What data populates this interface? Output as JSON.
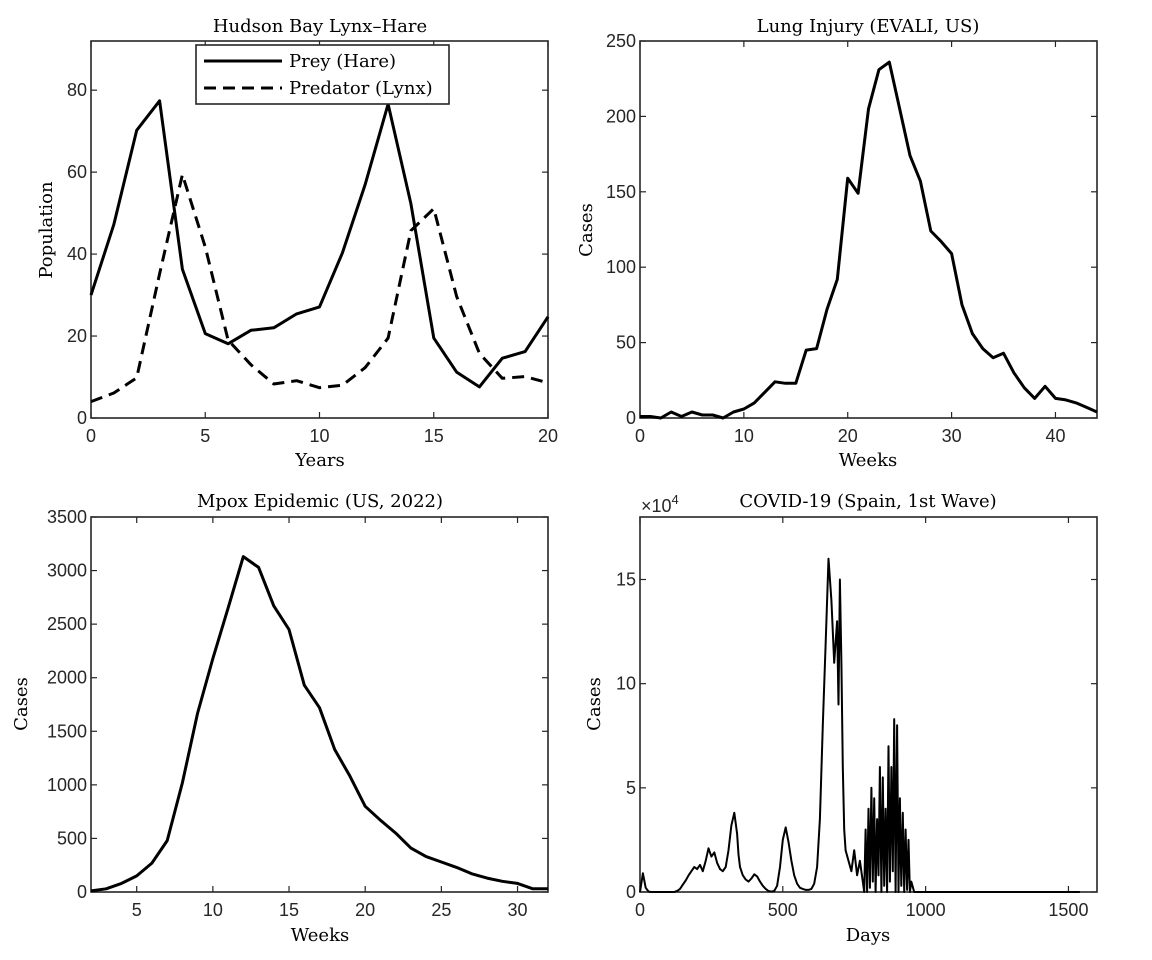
{
  "chart_data": [
    {
      "id": "lynx",
      "type": "line",
      "title": "Hudson Bay Lynx–Hare",
      "xlabel": "Years",
      "ylabel": "Population",
      "xlim": [
        0,
        20
      ],
      "ylim": [
        0,
        92
      ],
      "xticks": [
        0,
        5,
        10,
        15,
        20
      ],
      "yticks": [
        0,
        20,
        40,
        60,
        80
      ],
      "legend": "top-center",
      "x": [
        0,
        1,
        2,
        3,
        4,
        5,
        6,
        7,
        8,
        9,
        10,
        11,
        12,
        13,
        14,
        15,
        16,
        17,
        18,
        19,
        20
      ],
      "series": [
        {
          "name": "Prey (Hare)",
          "style": "solid",
          "values": [
            30,
            47.2,
            70.2,
            77.4,
            36.3,
            20.6,
            18.1,
            21.4,
            22,
            25.4,
            27.1,
            40.3,
            57,
            76.6,
            52.3,
            19.5,
            11.2,
            7.6,
            14.6,
            16.2,
            24.7
          ]
        },
        {
          "name": "Predator (Lynx)",
          "style": "dashed",
          "values": [
            4,
            6.1,
            9.8,
            35.2,
            59.4,
            41.7,
            19,
            13,
            8.3,
            9.1,
            7.4,
            8,
            12.3,
            19.5,
            45.7,
            51.1,
            29.7,
            15.8,
            9.7,
            10.1,
            8.6
          ]
        }
      ]
    },
    {
      "id": "evali",
      "type": "line",
      "title": "Lung Injury (EVALI, US)",
      "xlabel": "Weeks",
      "ylabel": "Cases",
      "xlim": [
        0,
        44
      ],
      "ylim": [
        0,
        250
      ],
      "xticks": [
        0,
        10,
        20,
        30,
        40
      ],
      "yticks": [
        0,
        50,
        100,
        150,
        200,
        250
      ],
      "series": [
        {
          "name": "EVALI",
          "x": [
            0,
            1,
            2,
            3,
            4,
            5,
            6,
            7,
            8,
            9,
            10,
            11,
            12,
            13,
            14,
            15,
            16,
            17,
            18,
            19,
            20,
            21,
            22,
            23,
            24,
            25,
            26,
            27,
            28,
            29,
            30,
            31,
            32,
            33,
            34,
            35,
            36,
            37,
            38,
            39,
            40,
            41,
            42,
            43,
            44
          ],
          "values": [
            1,
            1,
            0,
            4,
            1,
            4,
            2,
            2,
            0,
            4,
            6,
            10,
            17,
            24,
            23,
            23,
            45,
            46,
            72,
            92,
            159,
            149,
            205,
            231,
            236,
            205,
            174,
            157,
            124,
            117,
            109,
            75,
            56,
            46,
            40,
            43,
            30,
            20,
            13,
            21,
            13,
            12,
            10,
            7,
            4
          ]
        }
      ]
    },
    {
      "id": "mpox",
      "type": "line",
      "title": "Mpox Epidemic (US, 2022)",
      "xlabel": "Weeks",
      "ylabel": "Cases",
      "xlim": [
        2,
        32
      ],
      "ylim": [
        0,
        3500
      ],
      "xticks": [
        5,
        10,
        15,
        20,
        25,
        30
      ],
      "yticks": [
        0,
        500,
        1000,
        1500,
        2000,
        2500,
        3000,
        3500
      ],
      "series": [
        {
          "name": "Mpox",
          "x": [
            2,
            3,
            4,
            5,
            6,
            7,
            8,
            9,
            10,
            11,
            12,
            13,
            14,
            15,
            16,
            17,
            18,
            19,
            20,
            21,
            22,
            23,
            24,
            25,
            26,
            27,
            28,
            29,
            30,
            31,
            32
          ],
          "values": [
            10,
            30,
            80,
            150,
            270,
            480,
            1020,
            1670,
            2180,
            2650,
            3130,
            3030,
            2670,
            2450,
            1930,
            1720,
            1330,
            1080,
            800,
            670,
            550,
            410,
            330,
            280,
            230,
            170,
            130,
            100,
            80,
            30,
            30
          ]
        }
      ]
    },
    {
      "id": "covid",
      "type": "line",
      "title": "COVID-19 (Spain, 1st Wave)",
      "xlabel": "Days",
      "ylabel": "Cases",
      "xlim": [
        0,
        1600
      ],
      "ylim": [
        0,
        180000
      ],
      "xticks": [
        0,
        500,
        1000,
        1500
      ],
      "yticks": [
        0,
        50000,
        100000,
        150000
      ],
      "ytick_labels": [
        "0",
        "5",
        "10",
        "15"
      ],
      "exponent_label": "×10",
      "exponent_power": "4",
      "series": [
        {
          "name": "COVID-19",
          "x": [
            0,
            10,
            20,
            30,
            40,
            50,
            60,
            70,
            80,
            90,
            100,
            110,
            120,
            130,
            140,
            150,
            160,
            170,
            180,
            190,
            200,
            210,
            220,
            230,
            240,
            250,
            260,
            270,
            280,
            290,
            300,
            310,
            320,
            330,
            340,
            345,
            350,
            360,
            370,
            380,
            390,
            400,
            410,
            420,
            430,
            440,
            450,
            460,
            470,
            480,
            490,
            500,
            510,
            520,
            530,
            540,
            550,
            560,
            570,
            580,
            590,
            600,
            610,
            620,
            630,
            640,
            650,
            660,
            670,
            680,
            690,
            695,
            700,
            705,
            710,
            715,
            720,
            730,
            740,
            750,
            760,
            770,
            780,
            785,
            790,
            795,
            800,
            805,
            810,
            815,
            820,
            825,
            830,
            835,
            840,
            845,
            850,
            855,
            860,
            865,
            870,
            875,
            880,
            885,
            890,
            895,
            900,
            905,
            910,
            915,
            920,
            925,
            930,
            935,
            940,
            945,
            950,
            960,
            980,
            1000,
            1100,
            1200,
            1300,
            1400,
            1500,
            1540
          ],
          "values": [
            0,
            9000,
            2000,
            200,
            0,
            0,
            0,
            0,
            0,
            0,
            0,
            0,
            0,
            500,
            1500,
            3500,
            5500,
            8000,
            10000,
            12000,
            11000,
            13000,
            10000,
            15000,
            21000,
            17000,
            19000,
            14000,
            11000,
            10000,
            12000,
            20000,
            32000,
            38000,
            28000,
            18000,
            12000,
            8000,
            6000,
            5000,
            6500,
            8500,
            7500,
            5000,
            3000,
            1500,
            500,
            200,
            500,
            3000,
            12000,
            25000,
            31000,
            24000,
            15000,
            8000,
            4000,
            2000,
            1500,
            1000,
            1000,
            1500,
            4000,
            12000,
            35000,
            80000,
            120000,
            160000,
            140000,
            110000,
            130000,
            90000,
            150000,
            110000,
            60000,
            30000,
            20000,
            15000,
            10000,
            20000,
            8000,
            15000,
            5000,
            0,
            30000,
            0,
            40000,
            2000,
            50000,
            5000,
            45000,
            0,
            35000,
            8000,
            60000,
            0,
            55000,
            3000,
            40000,
            0,
            70000,
            5000,
            60000,
            10000,
            83000,
            0,
            80000,
            0,
            45000,
            3000,
            38000,
            0,
            30000,
            1000,
            25000,
            0,
            5000,
            0,
            0,
            0,
            0,
            0,
            0,
            0,
            0,
            0
          ]
        }
      ]
    }
  ]
}
